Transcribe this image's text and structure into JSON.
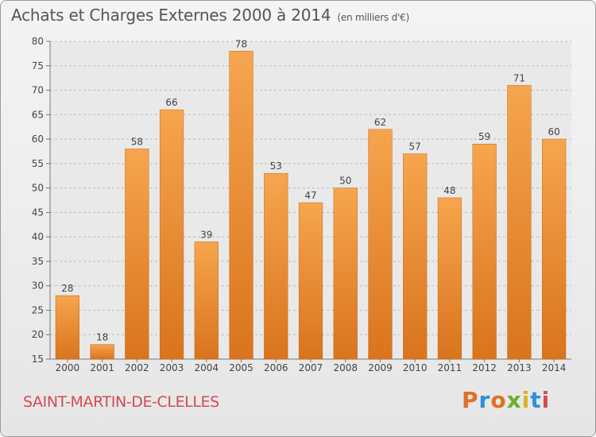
{
  "chart_data": {
    "type": "bar",
    "title": "Achats et Charges Externes 2000 à 2014",
    "subtitle": "(en milliers d'€)",
    "categories": [
      "2000",
      "2001",
      "2002",
      "2003",
      "2004",
      "2005",
      "2006",
      "2007",
      "2008",
      "2009",
      "2010",
      "2011",
      "2012",
      "2013",
      "2014"
    ],
    "values": [
      28,
      18,
      58,
      66,
      39,
      78,
      53,
      47,
      50,
      62,
      57,
      48,
      59,
      71,
      60
    ],
    "ylim": [
      15,
      80
    ],
    "yticks": [
      15,
      20,
      25,
      30,
      35,
      40,
      45,
      50,
      55,
      60,
      65,
      70,
      75,
      80
    ],
    "grid": true,
    "bar_color_top": "#f6a54e",
    "bar_color_bottom": "#d9741d"
  },
  "footer": {
    "commune": "SAINT-MARTIN-DE-CLELLES",
    "logo": {
      "letters": [
        "P",
        "r",
        "o",
        "x",
        "i",
        "t",
        "i"
      ],
      "colors": [
        "#e07020",
        "#2f8fd8",
        "#e07020",
        "#6cae2e",
        "#e0b020",
        "#2f8fd8",
        "#d44a55"
      ]
    }
  }
}
